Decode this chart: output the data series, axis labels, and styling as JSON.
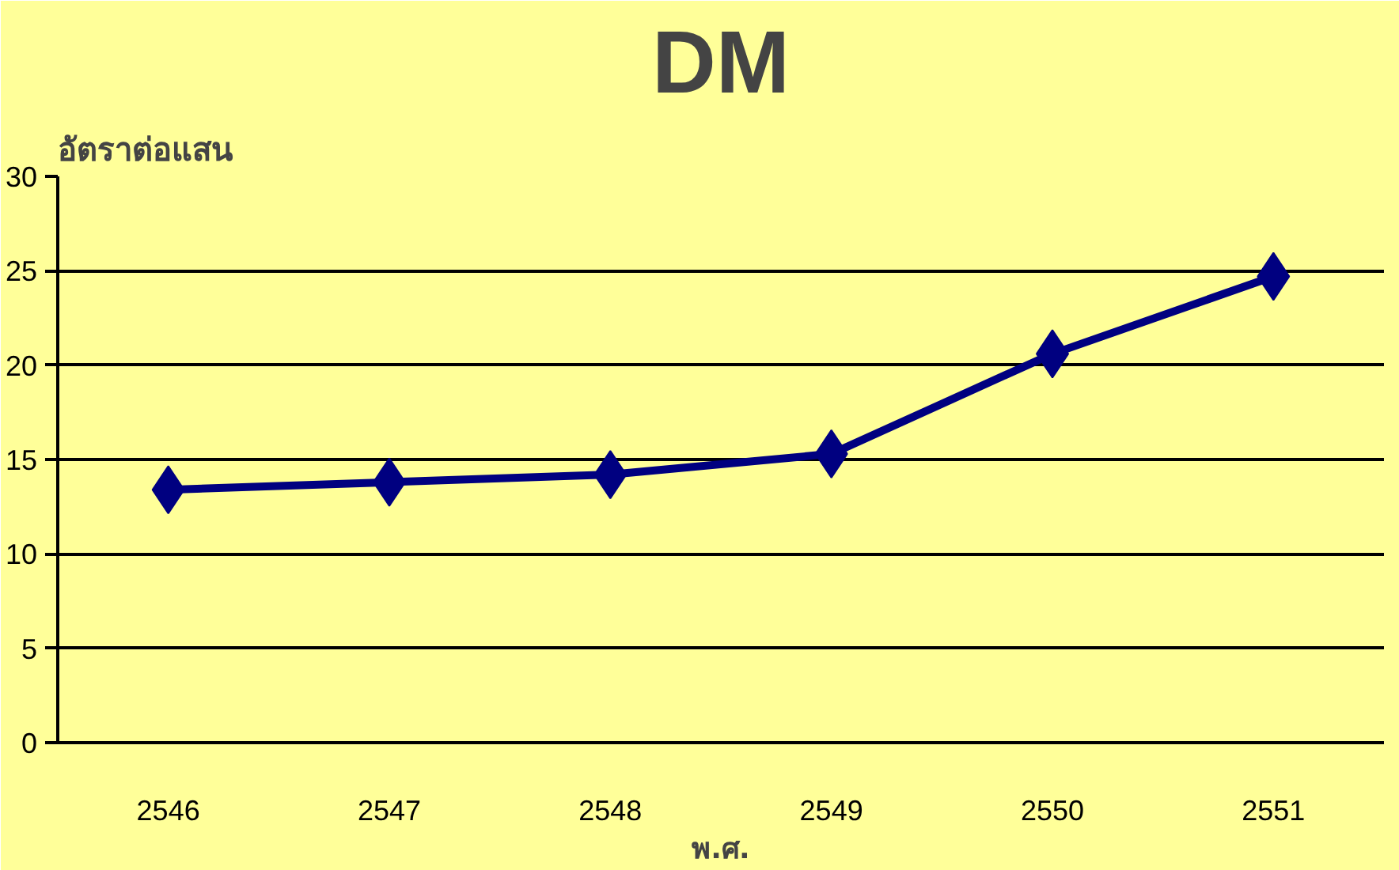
{
  "chart_data": {
    "type": "line",
    "title": "DM",
    "ylabel": "อัตราต่อแสน",
    "xlabel": "พ.ศ.",
    "categories": [
      "2546",
      "2547",
      "2548",
      "2549",
      "2550",
      "2551"
    ],
    "series": [
      {
        "color": "#000080",
        "values": [
          13.4,
          13.8,
          14.2,
          15.3,
          20.6,
          24.7
        ]
      }
    ],
    "ylim": [
      0,
      30
    ],
    "yticks": [
      0,
      5,
      10,
      15,
      20,
      25,
      30
    ],
    "grid": "y",
    "marker": "diamond",
    "line_style": "solid"
  }
}
